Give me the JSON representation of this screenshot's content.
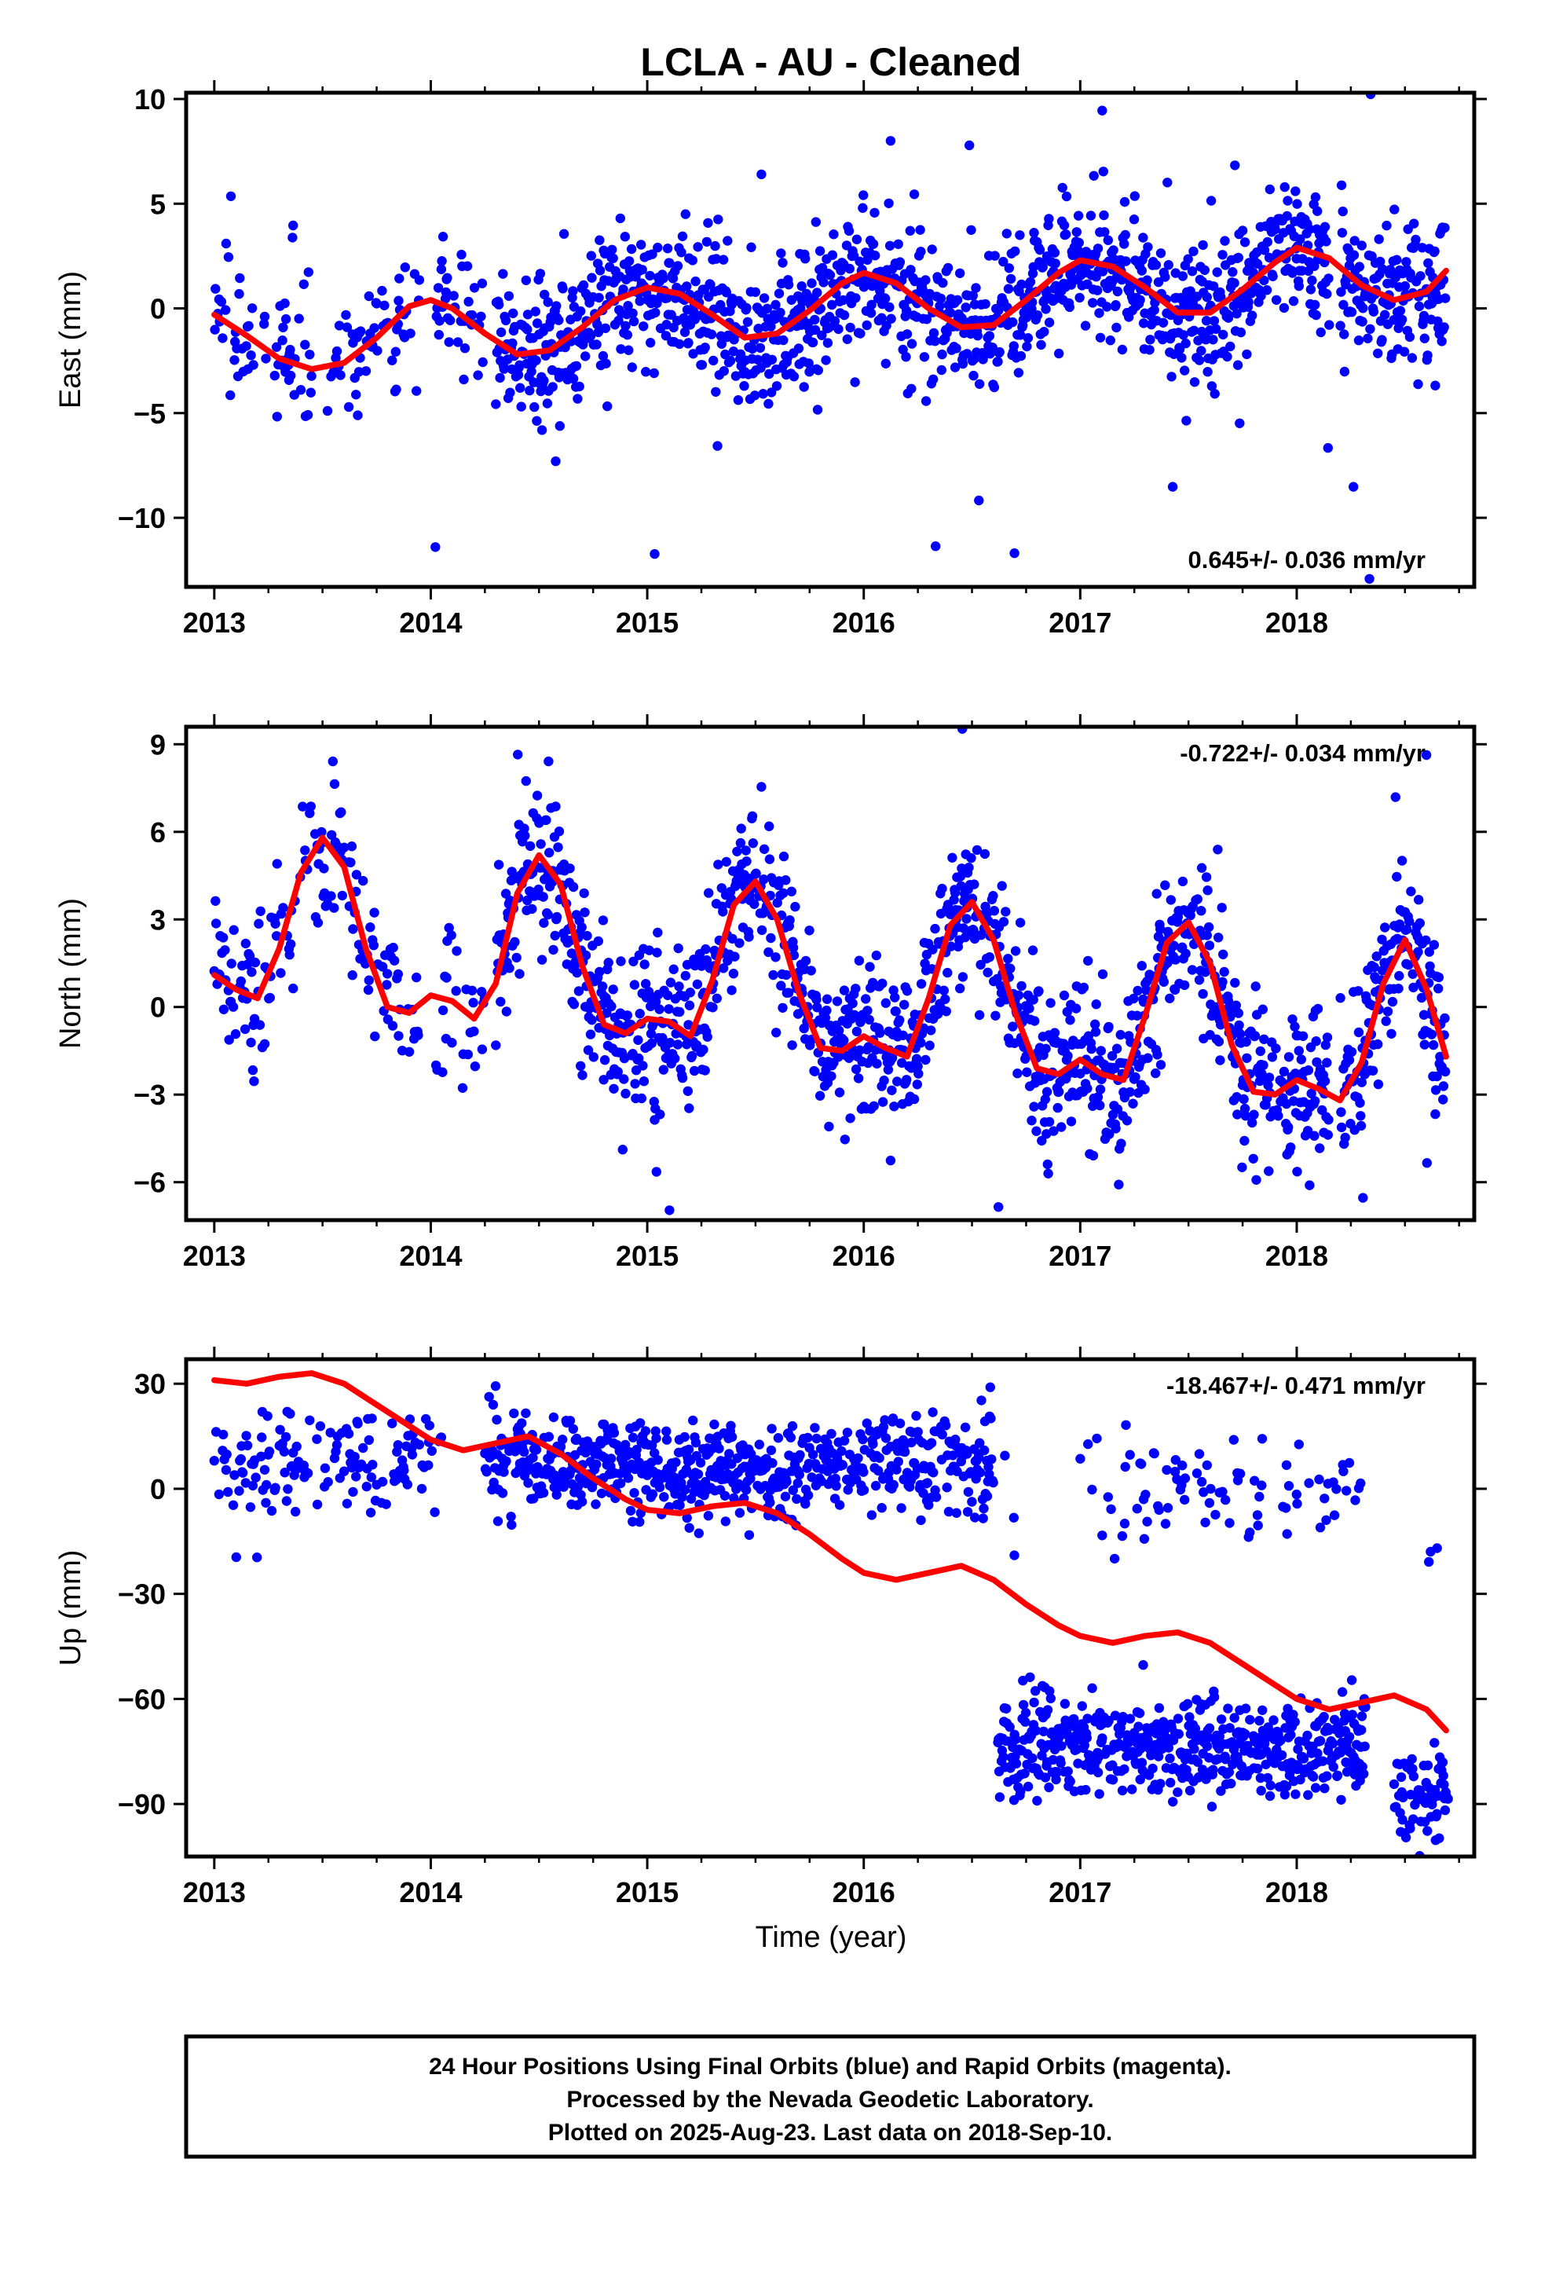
{
  "title": "LCLA  - AU - Cleaned",
  "xlabel": "Time (year)",
  "footer": {
    "lines": [
      "24 Hour Positions Using Final Orbits (blue) and Rapid Orbits (magenta).",
      "Processed by the Nevada Geodetic Laboratory.",
      "Plotted on 2025-Aug-23. Last data on 2018-Sep-10."
    ]
  },
  "colors": {
    "points": "#0000ff",
    "model": "#ff0000",
    "axes": "#000000"
  },
  "chart_data": [
    {
      "type": "scatter",
      "ylabel": "East (mm)",
      "rate_label": "0.645+/- 0.036 mm/yr",
      "rate_position": "bottom-right",
      "xlim": [
        2012.87,
        2018.82
      ],
      "ylim": [
        -13.3,
        10.3
      ],
      "xticks": [
        2013,
        2014,
        2015,
        2016,
        2017,
        2018
      ],
      "xtick_labels": [
        "2013",
        "2014",
        "2015",
        "2016",
        "2017",
        "2018"
      ],
      "yticks": [
        -10,
        -5,
        0,
        5,
        10
      ],
      "ytick_labels": [
        "−10",
        "−5",
        "0",
        "5",
        "10"
      ],
      "points_model": {
        "type": "seasonal-scatter",
        "offset": -2.2,
        "trend": 0.645,
        "amp1": 1.6,
        "phase1": -0.5,
        "amp2": 0.45,
        "phase2": 0.3,
        "noise": 1.8,
        "outliers": 0.04,
        "gaps": [
          [
            2013.45,
            2013.52
          ],
          [
            2013.95,
            2014.02
          ],
          [
            2014.25,
            2014.3
          ],
          [
            2018.15,
            2018.2
          ]
        ]
      },
      "model_curve": {
        "x": [
          2013.0,
          2013.15,
          2013.3,
          2013.45,
          2013.6,
          2013.75,
          2013.9,
          2014.0,
          2014.1,
          2014.25,
          2014.4,
          2014.55,
          2014.7,
          2014.85,
          2015.0,
          2015.15,
          2015.3,
          2015.45,
          2015.6,
          2015.75,
          2015.9,
          2016.0,
          2016.15,
          2016.3,
          2016.45,
          2016.6,
          2016.75,
          2016.9,
          2017.0,
          2017.15,
          2017.3,
          2017.45,
          2017.6,
          2017.75,
          2017.9,
          2018.0,
          2018.15,
          2018.3,
          2018.45,
          2018.6,
          2018.69
        ],
        "y": [
          -0.3,
          -1.3,
          -2.4,
          -2.9,
          -2.6,
          -1.4,
          0.1,
          0.4,
          0.0,
          -1.2,
          -2.2,
          -2.0,
          -0.9,
          0.4,
          1.0,
          0.7,
          -0.3,
          -1.4,
          -1.2,
          -0.1,
          1.2,
          1.7,
          1.2,
          0.0,
          -0.9,
          -0.8,
          0.4,
          1.7,
          2.3,
          2.0,
          1.0,
          -0.2,
          -0.2,
          0.9,
          2.2,
          2.9,
          2.4,
          1.1,
          0.4,
          0.8,
          1.8
        ]
      }
    },
    {
      "type": "scatter",
      "ylabel": "North (mm)",
      "rate_label": "-0.722+/- 0.034 mm/yr",
      "rate_position": "top-right",
      "xlim": [
        2012.87,
        2018.82
      ],
      "ylim": [
        -7.3,
        9.6
      ],
      "xticks": [
        2013,
        2014,
        2015,
        2016,
        2017,
        2018
      ],
      "xtick_labels": [
        "2013",
        "2014",
        "2015",
        "2016",
        "2017",
        "2018"
      ],
      "yticks": [
        -6,
        -3,
        0,
        3,
        6,
        9
      ],
      "ytick_labels": [
        "−6",
        "−3",
        "0",
        "3",
        "6",
        "9"
      ],
      "points_model": {
        "type": "seasonal-scatter",
        "offset": 1.6,
        "trend": -0.722,
        "amp1": 2.4,
        "phase1": 2.7,
        "amp2": 1.3,
        "phase2": 0.9,
        "noise": 1.5,
        "outliers": 0.03,
        "gaps": [
          [
            2013.95,
            2014.02
          ],
          [
            2014.25,
            2014.3
          ],
          [
            2018.15,
            2018.2
          ]
        ]
      },
      "model_curve": {
        "x": [
          2013.0,
          2013.1,
          2013.2,
          2013.3,
          2013.4,
          2013.5,
          2013.6,
          2013.7,
          2013.8,
          2013.9,
          2014.0,
          2014.1,
          2014.2,
          2014.3,
          2014.4,
          2014.5,
          2014.6,
          2014.7,
          2014.8,
          2014.9,
          2015.0,
          2015.1,
          2015.2,
          2015.3,
          2015.4,
          2015.5,
          2015.6,
          2015.7,
          2015.8,
          2015.9,
          2016.0,
          2016.1,
          2016.2,
          2016.3,
          2016.4,
          2016.5,
          2016.6,
          2016.7,
          2016.8,
          2016.9,
          2017.0,
          2017.1,
          2017.2,
          2017.3,
          2017.4,
          2017.5,
          2017.6,
          2017.7,
          2017.8,
          2017.9,
          2018.0,
          2018.1,
          2018.2,
          2018.3,
          2018.4,
          2018.5,
          2018.6,
          2018.69
        ],
        "y": [
          1.1,
          0.6,
          0.3,
          2.0,
          4.6,
          5.8,
          4.8,
          2.0,
          0.0,
          -0.2,
          0.4,
          0.2,
          -0.4,
          0.8,
          3.9,
          5.2,
          4.2,
          1.4,
          -0.6,
          -0.9,
          -0.4,
          -0.5,
          -1.0,
          0.9,
          3.5,
          4.3,
          3.0,
          0.5,
          -1.4,
          -1.5,
          -1.0,
          -1.4,
          -1.7,
          0.3,
          2.8,
          3.6,
          2.3,
          -0.2,
          -2.1,
          -2.3,
          -1.8,
          -2.3,
          -2.5,
          -0.3,
          2.2,
          2.9,
          1.5,
          -1.3,
          -2.9,
          -3.0,
          -2.5,
          -2.8,
          -3.2,
          -1.9,
          0.8,
          2.3,
          0.6,
          -1.7
        ]
      }
    },
    {
      "type": "scatter",
      "ylabel": "Up (mm)",
      "rate_label": "-18.467+/- 0.471 mm/yr",
      "rate_position": "top-right",
      "xlim": [
        2012.87,
        2018.82
      ],
      "ylim": [
        -105,
        37
      ],
      "xticks": [
        2013,
        2014,
        2015,
        2016,
        2017,
        2018
      ],
      "xtick_labels": [
        "2013",
        "2014",
        "2015",
        "2016",
        "2017",
        "2018"
      ],
      "yticks": [
        -90,
        -60,
        -30,
        0,
        30
      ],
      "ytick_labels": [
        "−90",
        "−60",
        "−30",
        "0",
        "30"
      ],
      "points_model": {
        "type": "segmented-scatter",
        "segments": [
          {
            "from": 2013.0,
            "to": 2014.05,
            "offset": 5,
            "trend": 3,
            "noise": 7,
            "density": 0.45
          },
          {
            "from": 2014.25,
            "to": 2015.7,
            "offset": 8,
            "trend": -3,
            "noise": 7,
            "density": 1.0
          },
          {
            "from": 2015.7,
            "to": 2016.6,
            "offset": 7,
            "trend": 0,
            "noise": 7,
            "density": 0.8
          },
          {
            "from": 2016.6,
            "to": 2016.7,
            "offset": 2,
            "trend": 0,
            "noise": 8,
            "density": 0.15
          },
          {
            "from": 2017.0,
            "to": 2018.3,
            "offset": 0,
            "trend": 0,
            "noise": 8,
            "density": 0.25
          },
          {
            "from": 2016.62,
            "to": 2018.32,
            "offset": -74,
            "trend": 0,
            "noise": 7,
            "density": 1.0
          },
          {
            "from": 2018.45,
            "to": 2018.7,
            "offset": -86,
            "trend": 0,
            "noise": 7,
            "density": 0.9
          },
          {
            "from": 2018.55,
            "to": 2018.65,
            "offset": -20,
            "trend": 0,
            "noise": 3,
            "density": 0.1
          }
        ]
      },
      "model_curve": {
        "x": [
          2013.0,
          2013.15,
          2013.3,
          2013.45,
          2013.6,
          2013.75,
          2013.9,
          2014.0,
          2014.15,
          2014.3,
          2014.45,
          2014.6,
          2014.75,
          2014.9,
          2015.0,
          2015.15,
          2015.3,
          2015.45,
          2015.6,
          2015.75,
          2015.9,
          2016.0,
          2016.15,
          2016.3,
          2016.45,
          2016.6,
          2016.75,
          2016.9,
          2017.0,
          2017.15,
          2017.3,
          2017.45,
          2017.6,
          2017.75,
          2017.9,
          2018.0,
          2018.15,
          2018.3,
          2018.45,
          2018.6,
          2018.69
        ],
        "y": [
          31,
          30,
          32,
          33,
          30,
          24,
          18,
          14,
          11,
          13,
          15,
          10,
          3,
          -3,
          -6,
          -7,
          -5,
          -4,
          -7,
          -13,
          -20,
          -24,
          -26,
          -24,
          -22,
          -26,
          -33,
          -39,
          -42,
          -44,
          -42,
          -41,
          -44,
          -50,
          -56,
          -60,
          -63,
          -61,
          -59,
          -63,
          -69
        ]
      }
    }
  ]
}
